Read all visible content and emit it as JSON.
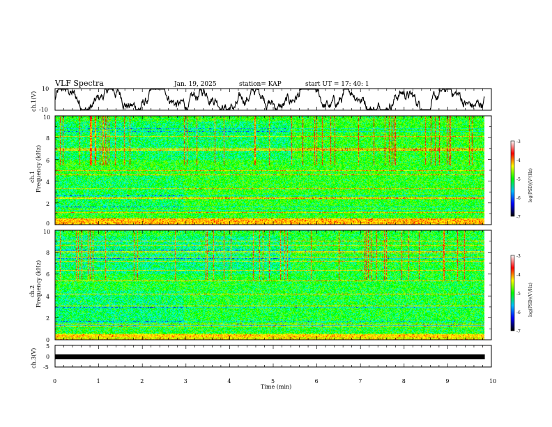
{
  "header": {
    "title": "VLF Spectra",
    "date": "Jan. 19, 2025",
    "station": "station= KAP",
    "start_ut": "start  UT =   17: 40: 1"
  },
  "colors": {
    "palette": [
      "#000080",
      "#0000ff",
      "#00bfff",
      "#00ffcc",
      "#00ff00",
      "#7fff00",
      "#ffff00",
      "#ffa500",
      "#ff0000",
      "#ffffff"
    ],
    "trace": "#000000"
  },
  "chart_data": [
    {
      "type": "line",
      "name": "ch1-waveform",
      "ylabel": "ch.1(V)",
      "ylim": [
        -10,
        10
      ],
      "yticks": [
        "10",
        "-10"
      ],
      "x_range_min": [
        0,
        9.85
      ],
      "approx_amplitude": 6
    },
    {
      "type": "heatmap",
      "name": "ch1-spectrogram",
      "ylabel_line1": "ch.1",
      "ylabel_line2": "Frequency  (kHz)",
      "ylim": [
        0,
        10
      ],
      "yticks": [
        "0",
        "2",
        "4",
        "6",
        "8",
        "10"
      ],
      "x_range_min": [
        0,
        9.85
      ],
      "colorbar": {
        "label": "log(PSD)(V²/Hz)",
        "range": [
          -7,
          -3
        ],
        "ticks": [
          "-3",
          "-4",
          "-5",
          "-6",
          "-7"
        ]
      }
    },
    {
      "type": "heatmap",
      "name": "ch2-spectrogram",
      "ylabel_line1": "ch.2",
      "ylabel_line2": "Frequency  (kHz)",
      "ylim": [
        0,
        10
      ],
      "yticks": [
        "0",
        "2",
        "4",
        "6",
        "8",
        "10"
      ],
      "x_range_min": [
        0,
        9.85
      ],
      "colorbar": {
        "label": "log(PSD)(V²/Hz)",
        "range": [
          -7,
          -3
        ],
        "ticks": [
          "-3",
          "-4",
          "-5",
          "-6",
          "-7"
        ]
      }
    },
    {
      "type": "line",
      "name": "ch3-waveform",
      "ylabel": "ch.3(V)",
      "ylim": [
        -5,
        5
      ],
      "yticks": [
        "5",
        "0",
        "-5"
      ],
      "x_range_min": [
        0,
        9.85
      ],
      "approx_level": -0.3
    }
  ],
  "xaxis": {
    "label": "Time  (min)",
    "range": [
      0,
      10
    ],
    "ticks": [
      "0",
      "1",
      "2",
      "3",
      "4",
      "5",
      "6",
      "7",
      "8",
      "9",
      "10"
    ]
  }
}
